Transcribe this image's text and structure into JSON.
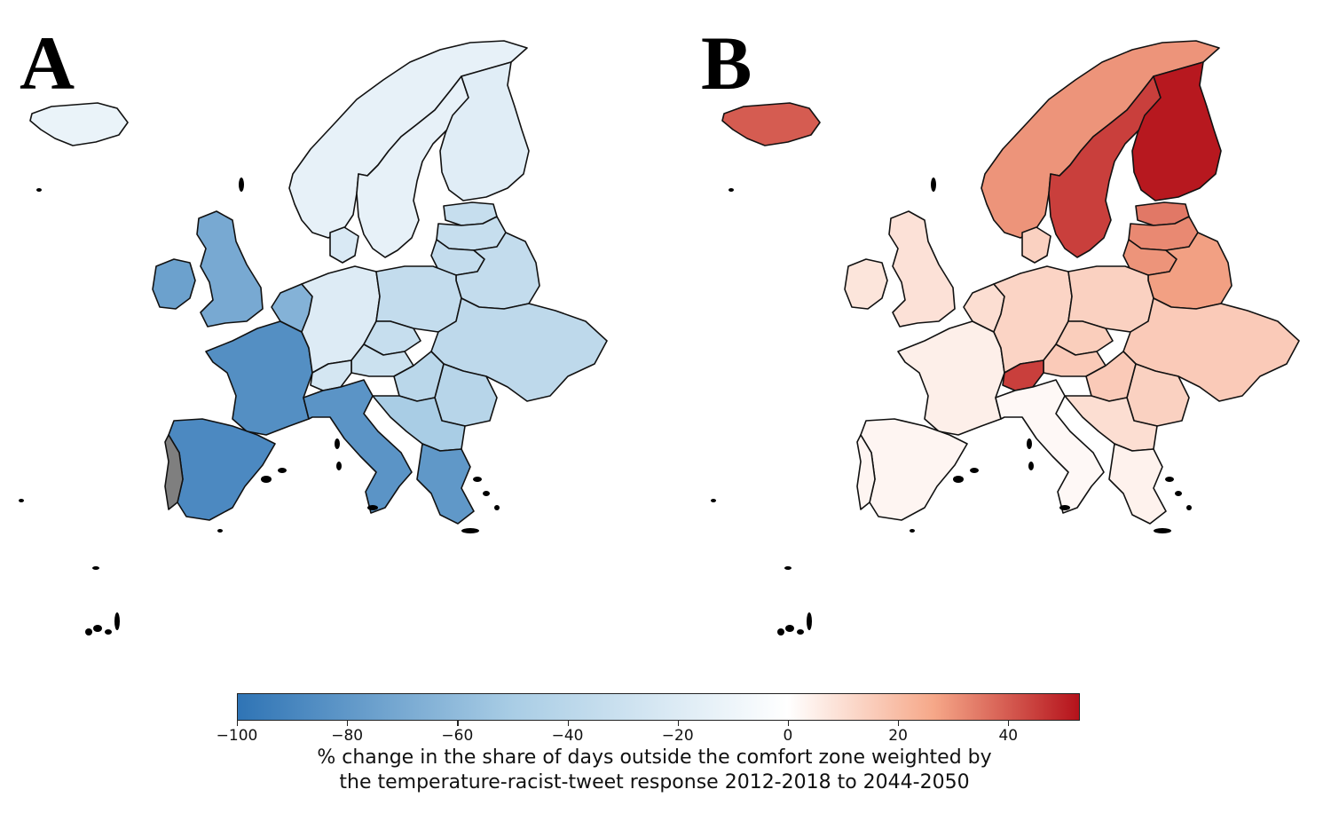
{
  "panels": [
    {
      "label": "A",
      "scheme": "decrease"
    },
    {
      "label": "B",
      "scheme": "increase"
    }
  ],
  "colorbar": {
    "range": [
      -100,
      53
    ],
    "ticks": [
      "−100",
      "−80",
      "−60",
      "−40",
      "−20",
      "0",
      "20",
      "40"
    ],
    "tick_values": [
      -100,
      -80,
      -60,
      -40,
      -20,
      0,
      20,
      40
    ],
    "caption_line1": "% change in the share of days outside the comfort zone weighted by",
    "caption_line2": "the temperature-racist-tweet response 2012-2018 to 2044-2050",
    "colors": {
      "min": "#2f74b5",
      "mid": "#ffffff",
      "max": "#b5121b",
      "no_data": "#7f7f7f"
    }
  },
  "map_values": {
    "A": {
      "Iceland": -12,
      "Norway": -14,
      "Sweden": -14,
      "Finland": -18,
      "Estonia": -33,
      "Latvia": -33,
      "Lithuania": -35,
      "Belarus": -35,
      "Ireland": -75,
      "United Kingdom": -70,
      "France": -85,
      "Spain": -88,
      "Portugal": null,
      "Benelux": -65,
      "Denmark": -22,
      "Germany": -20,
      "Poland": -35,
      "Czechia": -33,
      "Austria": -30,
      "Switzerland": -25,
      "Italy": -82,
      "Ukraine": -38,
      "Romania": -42,
      "Hungary": -40,
      "Balkans": -50,
      "Greece": -80
    },
    "B": {
      "Iceland": 40,
      "Norway": 30,
      "Sweden": 45,
      "Finland": 52,
      "Estonia": 35,
      "Latvia": 32,
      "Lithuania": 30,
      "Belarus": 28,
      "Ireland": 8,
      "United Kingdom": 9,
      "France": 5,
      "Spain": 3,
      "Portugal": 3,
      "Benelux": 10,
      "Denmark": 14,
      "Germany": 13,
      "Poland": 14,
      "Czechia": 15,
      "Austria": 16,
      "Switzerland": 45,
      "Italy": 2,
      "Ukraine": 16,
      "Romania": 14,
      "Hungary": 16,
      "Balkans": 10,
      "Greece": 4
    }
  }
}
